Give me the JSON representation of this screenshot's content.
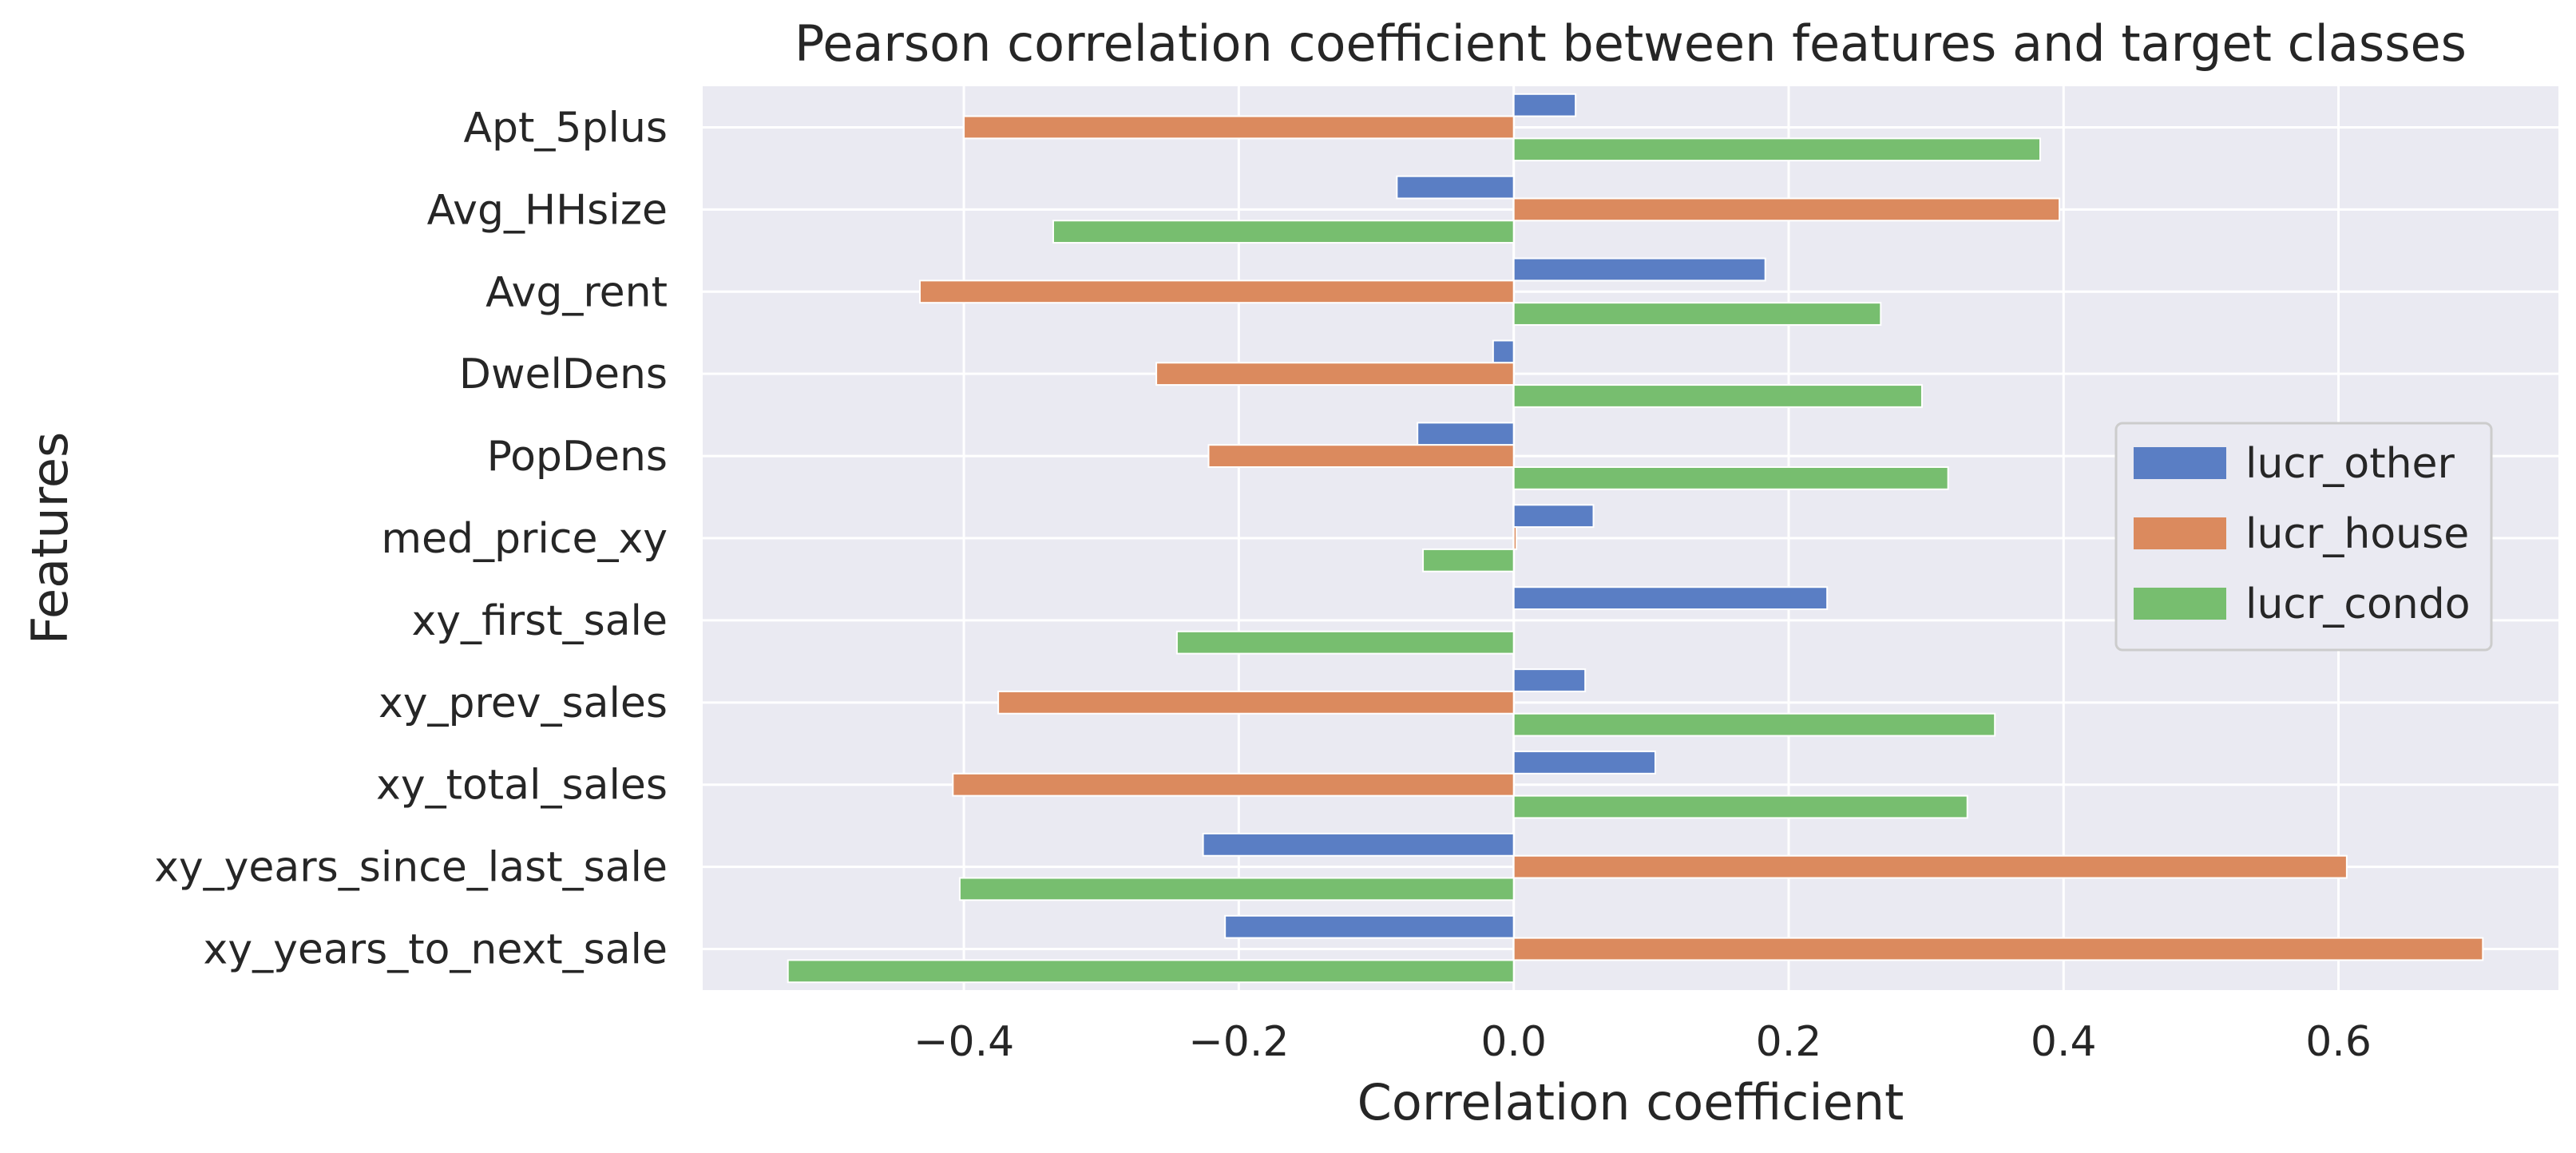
{
  "chart_data": {
    "type": "bar",
    "orientation": "horizontal",
    "title": "Pearson correlation coefficient between features and target classes",
    "xlabel": "Correlation coefficient",
    "ylabel": "Features",
    "categories": [
      "Apt_5plus",
      "Avg_HHsize",
      "Avg_rent",
      "DwelDens",
      "PopDens",
      "med_price_xy",
      "xy_first_sale",
      "xy_prev_sales",
      "xy_total_sales",
      "xy_years_since_last_sale",
      "xy_years_to_next_sale"
    ],
    "series": [
      {
        "name": "lucr_other",
        "color": "#5a7ec4",
        "values": [
          0.045,
          -0.085,
          0.183,
          -0.015,
          -0.07,
          0.058,
          0.228,
          0.052,
          0.103,
          -0.226,
          -0.21
        ]
      },
      {
        "name": "lucr_house",
        "color": "#db8a5e",
        "values": [
          -0.4,
          0.397,
          -0.432,
          -0.26,
          -0.222,
          0.002,
          0.0,
          -0.375,
          -0.408,
          0.606,
          0.705
        ]
      },
      {
        "name": "lucr_condo",
        "color": "#77be6f",
        "values": [
          0.383,
          -0.335,
          0.267,
          0.297,
          0.316,
          -0.066,
          -0.245,
          0.35,
          0.33,
          -0.403,
          -0.528
        ]
      }
    ],
    "xlim": [
      -0.59,
      0.76
    ],
    "xticks": [
      -0.4,
      -0.2,
      0.0,
      0.2,
      0.4,
      0.6
    ],
    "xtick_labels": [
      "−0.4",
      "−0.2",
      "0.0",
      "0.2",
      "0.4",
      "0.6"
    ],
    "grid": true,
    "legend_position": "center-right",
    "background_color": "#eaeaf2"
  }
}
